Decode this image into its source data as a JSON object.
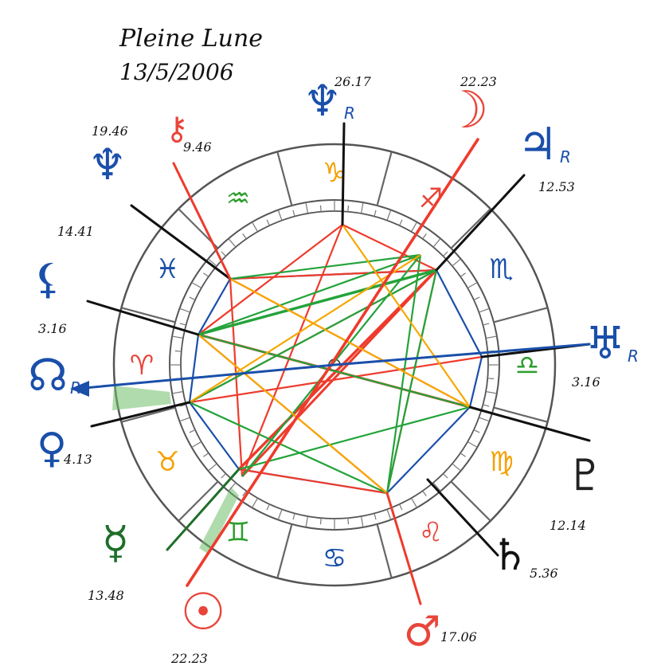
{
  "title": {
    "line1": "Pleine Lune",
    "line2": "13/5/2006"
  },
  "zodiac": [
    {
      "glyph": "♑",
      "name": "capricorn",
      "color": "#f4a000"
    },
    {
      "glyph": "♐",
      "name": "sagittarius",
      "color": "#e8453a"
    },
    {
      "glyph": "♏",
      "name": "scorpio",
      "color": "#1a4faa"
    },
    {
      "glyph": "♎",
      "name": "libra",
      "color": "#2e9e2e"
    },
    {
      "glyph": "♍",
      "name": "virgo",
      "color": "#f4a000"
    },
    {
      "glyph": "♌",
      "name": "leo",
      "color": "#e8453a"
    },
    {
      "glyph": "♋",
      "name": "cancer",
      "color": "#1a4faa"
    },
    {
      "glyph": "♊",
      "name": "gemini",
      "color": "#2e9e2e"
    },
    {
      "glyph": "♉",
      "name": "taurus",
      "color": "#f4a000"
    },
    {
      "glyph": "♈",
      "name": "aries",
      "color": "#e8453a"
    },
    {
      "glyph": "♓",
      "name": "pisces",
      "color": "#1a4faa"
    },
    {
      "glyph": "♒",
      "name": "aquarius",
      "color": "#2e9e2e"
    }
  ],
  "planets": [
    {
      "name": "moon",
      "glyph": "☽",
      "degree": "22.23",
      "color": "#e8453a"
    },
    {
      "name": "jupiter",
      "glyph": "♃",
      "suffix": "R",
      "degree": "12.53",
      "color": "#1a4faa"
    },
    {
      "name": "uranus",
      "glyph": "♅",
      "suffix": "R",
      "degree": "3.16",
      "color": "#1a4faa"
    },
    {
      "name": "pluto",
      "glyph": "♇",
      "degree": "12.14",
      "color": "#222222"
    },
    {
      "name": "saturn",
      "glyph": "♄",
      "degree": "5.36",
      "color": "#111111"
    },
    {
      "name": "mars",
      "glyph": "♂",
      "degree": "17.06",
      "color": "#e8453a"
    },
    {
      "name": "sun",
      "glyph": "☉",
      "degree": "22.23",
      "color": "#e8453a"
    },
    {
      "name": "mercury",
      "glyph": "☿",
      "degree": "13.48",
      "color": "#1f6e2a"
    },
    {
      "name": "venus",
      "glyph": "♀",
      "degree": "4.13",
      "color": "#1a4faa"
    },
    {
      "name": "node",
      "glyph": "☊",
      "suffix": "R",
      "degree": "3.16",
      "color": "#1a4faa"
    },
    {
      "name": "lilith",
      "glyph": "⚸",
      "degree": "14.41",
      "color": "#1a4faa"
    },
    {
      "name": "neptune",
      "glyph": "♆",
      "degree": "19.46",
      "color": "#1a4faa"
    },
    {
      "name": "chiron",
      "glyph": "⚷",
      "degree": "9.46",
      "color": "#e8453a"
    },
    {
      "name": "north-node",
      "glyph": "♆",
      "suffix": "R",
      "degree": "26.17",
      "color": "#1a4faa"
    }
  ],
  "colors": {
    "red": "#ee3b2c",
    "green": "#23a33a",
    "blue": "#1a4faa",
    "orange": "#f6a800",
    "black": "#111111",
    "ring": "#555555"
  }
}
